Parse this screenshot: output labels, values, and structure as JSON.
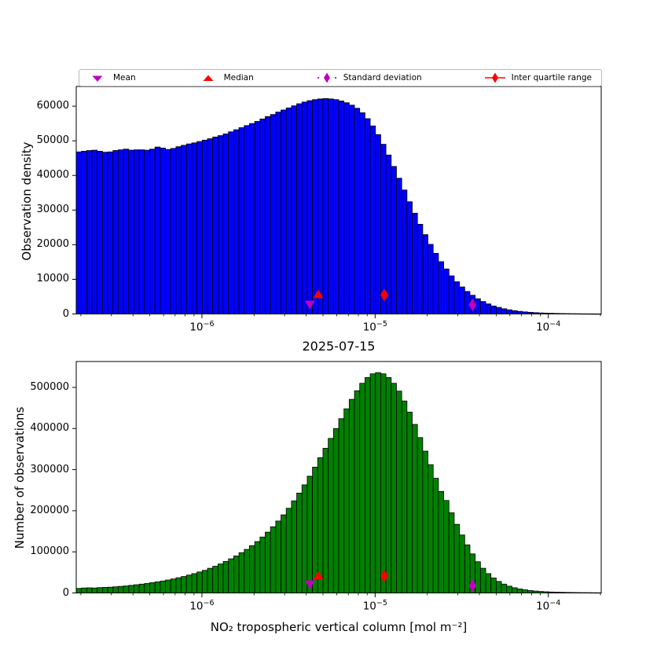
{
  "figure": {
    "title": "2025-07-15",
    "xlabel": "NO₂ tropospheric vertical column [mol m⁻²]",
    "background_color": "#ffffff"
  },
  "legend": {
    "items": [
      {
        "label": "Mean",
        "marker": "triangle-down",
        "color": "#bf00bf"
      },
      {
        "label": "Median",
        "marker": "triangle-up",
        "color": "#ff0000"
      },
      {
        "label": "Standard deviation",
        "marker": "diamond-dotted",
        "color": "#bf00bf"
      },
      {
        "label": "Inter quartile range",
        "marker": "diamond-solid-line",
        "color": "#ff0000"
      }
    ]
  },
  "chart_data": [
    {
      "type": "bar",
      "name": "observation-density-histogram",
      "ylabel": "Observation density",
      "xscale": "log",
      "xlim": [
        1.88e-07,
        0.000202
      ],
      "ylim": [
        0,
        65700
      ],
      "bar_color": "#0000ff",
      "edge_color": "#000000",
      "grid": false,
      "y_ticks": [
        {
          "label": "0",
          "value": 0
        },
        {
          "label": "10000",
          "value": 10000
        },
        {
          "label": "20000",
          "value": 20000
        },
        {
          "label": "30000",
          "value": 30000
        },
        {
          "label": "40000",
          "value": 40000
        },
        {
          "label": "50000",
          "value": 50000
        },
        {
          "label": "60000",
          "value": 60000
        }
      ],
      "x_ticks": [
        {
          "base": "10",
          "exp": "−6",
          "value": 1e-06
        },
        {
          "base": "10",
          "exp": "−5",
          "value": 1e-05
        },
        {
          "base": "10",
          "exp": "−4",
          "value": 0.0001
        }
      ],
      "values": [
        46800,
        47000,
        47200,
        47300,
        47000,
        46700,
        46800,
        47200,
        47400,
        47600,
        47300,
        47400,
        47400,
        47300,
        47600,
        48200,
        47900,
        47500,
        47800,
        48300,
        48700,
        49100,
        49400,
        49800,
        50200,
        50600,
        51100,
        51500,
        52000,
        52600,
        53200,
        53800,
        54400,
        55000,
        55600,
        56300,
        57000,
        57600,
        58300,
        58900,
        59500,
        60100,
        60700,
        61200,
        61600,
        61900,
        62100,
        62200,
        62100,
        61900,
        61500,
        61000,
        60300,
        59400,
        58100,
        56400,
        54300,
        51800,
        49000,
        45900,
        42600,
        39200,
        35800,
        32400,
        29100,
        25900,
        22900,
        20100,
        17500,
        15100,
        13000,
        11000,
        9300,
        7800,
        6500,
        5400,
        4400,
        3600,
        2900,
        2300,
        1900,
        1500,
        1200,
        950,
        750,
        600,
        480,
        380,
        300,
        240,
        190,
        150,
        120,
        100,
        80,
        65,
        50,
        40,
        30,
        25
      ],
      "markers": [
        {
          "name": "mean",
          "shape": "triangle-down",
          "color": "#bf00bf",
          "x": 4.2e-06,
          "y": 2800
        },
        {
          "name": "median",
          "shape": "triangle-up",
          "color": "#ff0000",
          "x": 4.7e-06,
          "y": 5600
        },
        {
          "name": "inter-quartile-range",
          "shape": "diamond",
          "color": "#ff0000",
          "x": 1.13e-05,
          "y": 5500
        },
        {
          "name": "standard-deviation",
          "shape": "diamond",
          "color": "#bf00bf",
          "x": 3.65e-05,
          "y": 2600
        }
      ]
    },
    {
      "type": "bar",
      "name": "number-of-observations-histogram",
      "ylabel": "Number of observations",
      "xscale": "log",
      "xlim": [
        1.88e-07,
        0.000202
      ],
      "ylim": [
        0,
        563000
      ],
      "bar_color": "#008000",
      "edge_color": "#000000",
      "grid": false,
      "y_ticks": [
        {
          "label": "0",
          "value": 0
        },
        {
          "label": "100000",
          "value": 100000
        },
        {
          "label": "200000",
          "value": 200000
        },
        {
          "label": "300000",
          "value": 300000
        },
        {
          "label": "400000",
          "value": 400000
        },
        {
          "label": "500000",
          "value": 500000
        }
      ],
      "x_ticks": [
        {
          "base": "10",
          "exp": "−6",
          "value": 1e-06
        },
        {
          "base": "10",
          "exp": "−5",
          "value": 1e-05
        },
        {
          "base": "10",
          "exp": "−4",
          "value": 0.0001
        }
      ],
      "values": [
        11000,
        12000,
        12500,
        12000,
        13000,
        13500,
        14000,
        15000,
        16000,
        17000,
        18500,
        20000,
        21500,
        23000,
        25000,
        27000,
        29000,
        31500,
        34000,
        37000,
        40000,
        43500,
        47000,
        51000,
        55000,
        60000,
        65000,
        70500,
        76500,
        83000,
        90000,
        98000,
        106000,
        115000,
        125000,
        136000,
        148000,
        161000,
        175000,
        190000,
        206000,
        224000,
        243000,
        263000,
        284000,
        306000,
        329000,
        352000,
        376000,
        400000,
        424000,
        448000,
        471000,
        492000,
        510000,
        524000,
        533000,
        536000,
        533000,
        524000,
        510000,
        491000,
        467000,
        440000,
        410000,
        378000,
        345000,
        312000,
        279000,
        247000,
        225000,
        195000,
        167000,
        141000,
        117000,
        95000,
        76000,
        60000,
        47000,
        36500,
        28000,
        21500,
        16500,
        12700,
        9800,
        7600,
        5900,
        4600,
        3600,
        2900,
        2300,
        1900,
        1600,
        1300,
        1100,
        950,
        800,
        700,
        600,
        500
      ],
      "markers": [
        {
          "name": "mean",
          "shape": "triangle-down",
          "color": "#bf00bf",
          "x": 4.2e-06,
          "y": 22000
        },
        {
          "name": "median",
          "shape": "triangle-up",
          "color": "#ff0000",
          "x": 4.7e-06,
          "y": 41000
        },
        {
          "name": "inter-quartile-range",
          "shape": "diamond",
          "color": "#ff0000",
          "x": 1.13e-05,
          "y": 41000
        },
        {
          "name": "standard-deviation",
          "shape": "diamond",
          "color": "#bf00bf",
          "x": 3.65e-05,
          "y": 18000
        }
      ]
    }
  ]
}
